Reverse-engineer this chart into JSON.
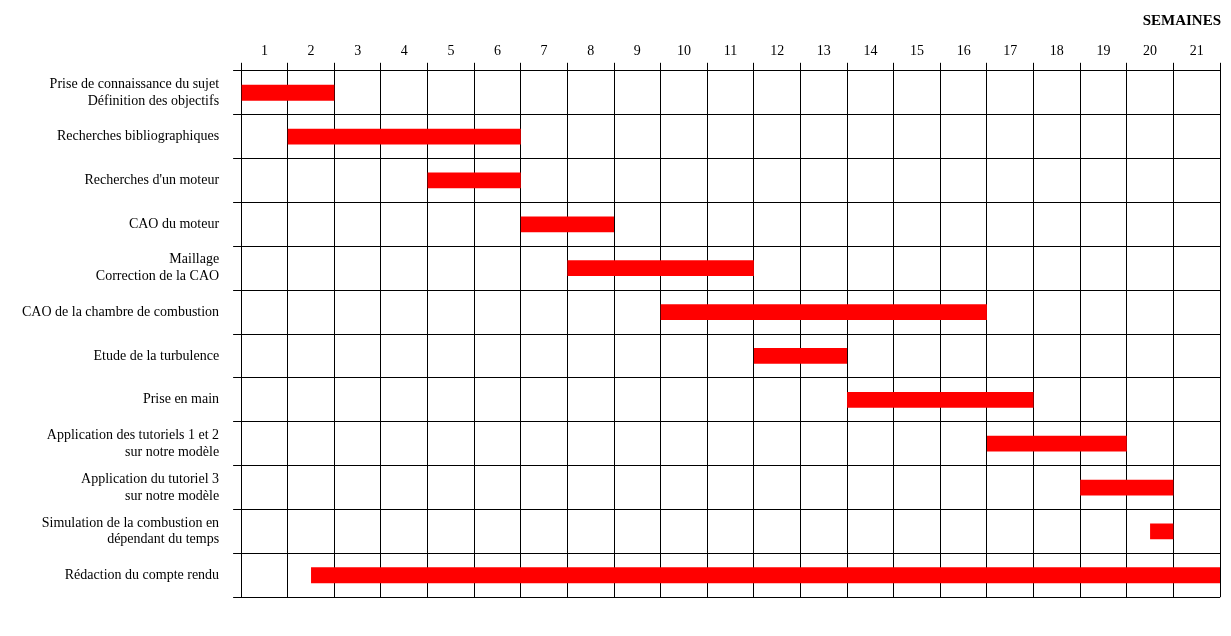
{
  "chart_data": {
    "type": "bar",
    "orientation": "horizontal",
    "title": "SEMAINES",
    "categories": [
      "Prise de connaissance du sujet\nDéfinition des objectifs",
      "Recherches bibliographiques",
      "Recherches d'un moteur",
      "CAO du moteur",
      "Maillage\nCorrection de la CAO",
      "CAO de la chambre de combustion",
      "Etude de la turbulence",
      "Prise en main",
      "Application des tutoriels 1 et 2\nsur notre modèle",
      "Application du tutoriel 3\nsur notre modèle",
      "Simulation de la combustion en\ndépendant du temps",
      "Rédaction du compte rendu"
    ],
    "base": [
      0,
      1,
      4,
      6,
      7,
      9,
      11,
      13,
      16,
      18,
      19.5,
      1.5
    ],
    "values": [
      2,
      5,
      2,
      2,
      4,
      7,
      2,
      4,
      3,
      2,
      0.5,
      19.5
    ],
    "color": "#ff0000",
    "xlim": [
      0,
      21
    ],
    "xticks": [
      {
        "value": 0,
        "label": null
      },
      {
        "value": 0.5,
        "label": "1"
      },
      {
        "value": 1,
        "label": null
      },
      {
        "value": 1.5,
        "label": "2"
      },
      {
        "value": 2,
        "label": null
      },
      {
        "value": 2.5,
        "label": "3"
      },
      {
        "value": 3,
        "label": null
      },
      {
        "value": 3.5,
        "label": "4"
      },
      {
        "value": 4,
        "label": null
      },
      {
        "value": 4.5,
        "label": "5"
      },
      {
        "value": 5,
        "label": null
      },
      {
        "value": 5.5,
        "label": "6"
      },
      {
        "value": 6,
        "label": null
      },
      {
        "value": 6.5,
        "label": "7"
      },
      {
        "value": 7,
        "label": null
      },
      {
        "value": 7.5,
        "label": "8"
      },
      {
        "value": 8,
        "label": null
      },
      {
        "value": 8.5,
        "label": "9"
      },
      {
        "value": 9,
        "label": null
      },
      {
        "value": 9.5,
        "label": "10"
      },
      {
        "value": 10,
        "label": null
      },
      {
        "value": 10.5,
        "label": "11"
      },
      {
        "value": 11,
        "label": null
      },
      {
        "value": 11.5,
        "label": "12"
      },
      {
        "value": 12,
        "label": null
      },
      {
        "value": 12.5,
        "label": "13"
      },
      {
        "value": 13,
        "label": null
      },
      {
        "value": 13.5,
        "label": "14"
      },
      {
        "value": 14,
        "label": null
      },
      {
        "value": 14.5,
        "label": "15"
      },
      {
        "value": 15,
        "label": null
      },
      {
        "value": 15.5,
        "label": "16"
      },
      {
        "value": 16,
        "label": null
      },
      {
        "value": 16.5,
        "label": "17"
      },
      {
        "value": 17,
        "label": null
      },
      {
        "value": 17.5,
        "label": "18"
      },
      {
        "value": 18,
        "label": null
      },
      {
        "value": 18.5,
        "label": "19"
      },
      {
        "value": 19,
        "label": null
      },
      {
        "value": 19.5,
        "label": "20"
      },
      {
        "value": 20,
        "label": null
      },
      {
        "value": 20.5,
        "label": "21"
      },
      {
        "value": 21,
        "label": null
      }
    ],
    "grid": true,
    "legend": false
  }
}
